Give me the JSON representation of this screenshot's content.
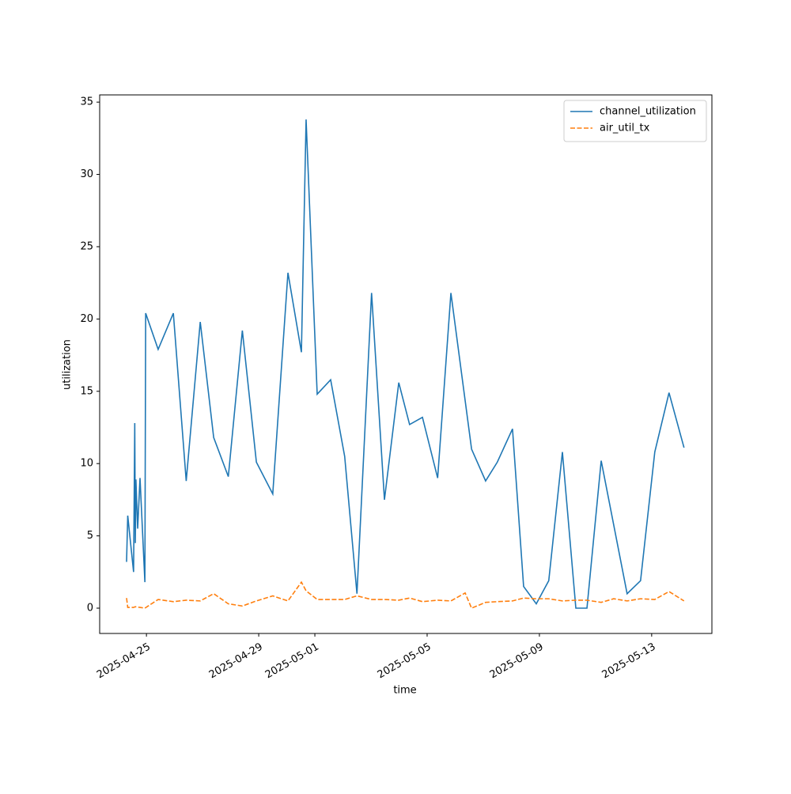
{
  "chart_data": {
    "type": "line",
    "x_label": "time",
    "y_label": "utilization",
    "xlim": [
      "2025-04-23 08:00",
      "2025-05-15 03:30"
    ],
    "xticks": [
      "2025-04-25",
      "2025-04-29",
      "2025-05-01",
      "2025-05-05",
      "2025-05-09",
      "2025-05-13"
    ],
    "ylim": [
      -1.75,
      35.5
    ],
    "yticks": [
      0,
      5,
      10,
      15,
      20,
      25,
      30,
      35
    ],
    "legend": "upper right",
    "series": [
      {
        "name": "channel_utilization",
        "color": "#1f77b4",
        "dash": "solid",
        "x": [
          "2025-04-24 07:00",
          "2025-04-24 08:00",
          "2025-04-24 13:00",
          "2025-04-24 14:00",
          "2025-04-24 14:30",
          "2025-04-24 15:00",
          "2025-04-24 16:30",
          "2025-04-24 18:30",
          "2025-04-24 22:40",
          "2025-04-24 23:20",
          "2025-04-25 10:00",
          "2025-04-25 23:00",
          "2025-04-26 10:00",
          "2025-04-26 22:00",
          "2025-04-27 09:30",
          "2025-04-27 22:00",
          "2025-04-28 10:00",
          "2025-04-28 22:00",
          "2025-04-29 12:00",
          "2025-04-30 01:00",
          "2025-04-30 12:30",
          "2025-04-30 16:30",
          "2025-05-01 02:00",
          "2025-05-01 13:30",
          "2025-05-02 01:30",
          "2025-05-02 12:00",
          "2025-05-03 00:30",
          "2025-05-03 11:30",
          "2025-05-03 23:45",
          "2025-05-04 09:00",
          "2025-05-04 20:00",
          "2025-05-05 09:00",
          "2025-05-05 20:20",
          "2025-05-06 14:00",
          "2025-05-07 02:00",
          "2025-05-07 12:00",
          "2025-05-08 01:00",
          "2025-05-08 10:30",
          "2025-05-08 21:20",
          "2025-05-09 08:00",
          "2025-05-09 19:40",
          "2025-05-10 07:10",
          "2025-05-10 16:40",
          "2025-05-11 04:50",
          "2025-05-12 03:00",
          "2025-05-12 14:30",
          "2025-05-13 02:40",
          "2025-05-13 14:50",
          "2025-05-14 03:40"
        ],
        "values": [
          3.2,
          6.4,
          2.5,
          12.8,
          4.5,
          8.9,
          5.5,
          9.0,
          1.8,
          20.4,
          17.9,
          20.4,
          8.8,
          19.8,
          11.8,
          9.1,
          19.2,
          10.1,
          7.9,
          23.2,
          17.7,
          33.8,
          14.8,
          15.8,
          10.5,
          1.0,
          21.8,
          7.5,
          15.6,
          12.7,
          13.2,
          9.0,
          21.8,
          11.0,
          8.8,
          10.1,
          12.4,
          1.5,
          0.3,
          1.9,
          10.8,
          0.0,
          0.0,
          10.2,
          1.0,
          1.9,
          10.8,
          14.9,
          11.1
        ]
      },
      {
        "name": "air_util_tx",
        "color": "#ff7f0e",
        "dash": "dashed",
        "x": [
          "2025-04-24 07:00",
          "2025-04-24 08:00",
          "2025-04-24 13:00",
          "2025-04-24 14:30",
          "2025-04-24 18:30",
          "2025-04-24 22:40",
          "2025-04-25 10:00",
          "2025-04-25 23:00",
          "2025-04-26 10:00",
          "2025-04-26 22:00",
          "2025-04-27 09:30",
          "2025-04-27 22:00",
          "2025-04-28 10:00",
          "2025-04-28 22:00",
          "2025-04-29 12:00",
          "2025-04-30 01:00",
          "2025-04-30 12:30",
          "2025-04-30 16:30",
          "2025-05-01 02:00",
          "2025-05-01 13:30",
          "2025-05-02 01:30",
          "2025-05-02 12:00",
          "2025-05-03 00:30",
          "2025-05-03 11:30",
          "2025-05-03 23:45",
          "2025-05-04 09:00",
          "2025-05-04 20:00",
          "2025-05-05 09:00",
          "2025-05-05 20:20",
          "2025-05-06 08:30",
          "2025-05-06 14:00",
          "2025-05-07 02:00",
          "2025-05-07 12:00",
          "2025-05-08 01:00",
          "2025-05-08 10:30",
          "2025-05-08 21:20",
          "2025-05-09 08:00",
          "2025-05-09 19:40",
          "2025-05-10 07:10",
          "2025-05-10 16:40",
          "2025-05-11 04:50",
          "2025-05-11 15:30",
          "2025-05-12 03:00",
          "2025-05-12 14:30",
          "2025-05-13 02:40",
          "2025-05-13 14:50",
          "2025-05-14 03:40"
        ],
        "values": [
          0.7,
          0.05,
          0.05,
          0.1,
          0.05,
          0.0,
          0.6,
          0.45,
          0.55,
          0.5,
          1.0,
          0.3,
          0.15,
          0.5,
          0.85,
          0.5,
          1.8,
          1.2,
          0.6,
          0.6,
          0.6,
          0.85,
          0.6,
          0.6,
          0.55,
          0.7,
          0.45,
          0.55,
          0.5,
          1.05,
          0.0,
          0.4,
          0.45,
          0.5,
          0.7,
          0.65,
          0.65,
          0.5,
          0.55,
          0.55,
          0.4,
          0.65,
          0.5,
          0.65,
          0.6,
          1.15,
          0.5
        ]
      }
    ]
  }
}
